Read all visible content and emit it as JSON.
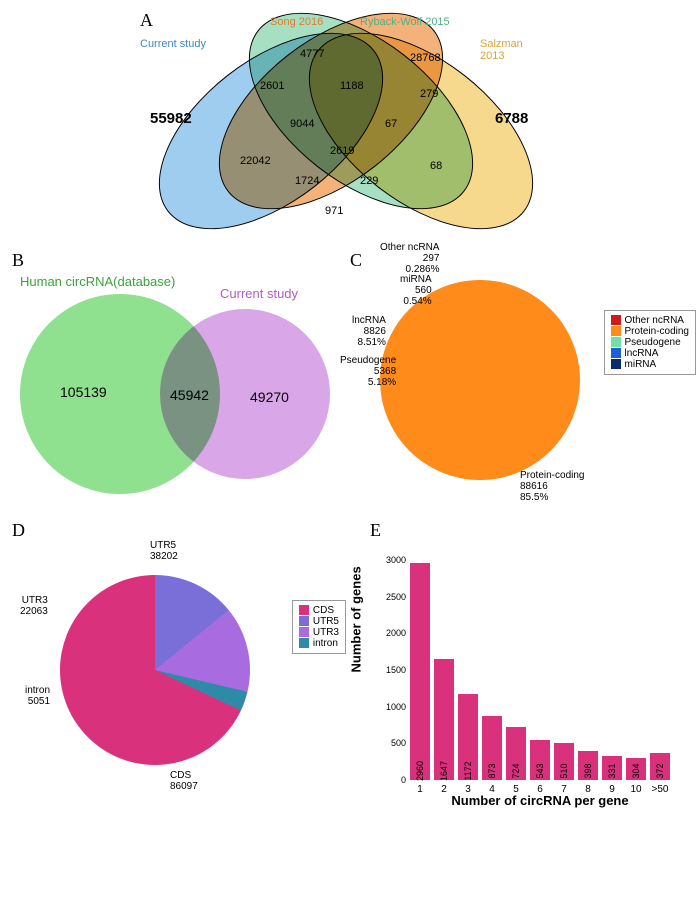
{
  "panelA": {
    "label": "A",
    "sets": [
      {
        "name": "Current study",
        "color": "#9ecdf0",
        "title_color": "#3d87c7"
      },
      {
        "name": "Song 2016",
        "color": "#f3b27a",
        "title_color": "#e07b2e"
      },
      {
        "name": "Ryback-Wolf 2015",
        "color": "#a6dfc1",
        "title_color": "#4fb082"
      },
      {
        "name": "Salzman 2013",
        "color": "#f6d98d",
        "title_color": "#d9a436"
      }
    ],
    "values": {
      "only_current": "55982",
      "only_song": "4777",
      "only_ryback": "28768",
      "only_salzman": "6788",
      "cs": "2601",
      "cr": "22042",
      "csal": "971",
      "sr": "1188",
      "ssal": "68",
      "rsal": "279",
      "csr": "9044",
      "cssal": "229",
      "crsal": "1724",
      "srsal": "67",
      "all4": "2619"
    }
  },
  "panelB": {
    "label": "B",
    "left": {
      "name": "Human circRNA(database)",
      "color": "#8fe08f",
      "title_color": "#3aa33a",
      "value": "105139"
    },
    "right": {
      "name": "Current study",
      "color": "#d9a6e8",
      "title_color": "#b05cc4",
      "value": "49270"
    },
    "overlap": "45942"
  },
  "panelC": {
    "label": "C",
    "slices": [
      {
        "key": "Protein-coding",
        "value": 88616,
        "pct": "85.5%",
        "color": "#ff8c1a"
      },
      {
        "key": "lncRNA",
        "value": 8826,
        "pct": "8.51%",
        "color": "#1f5fd6"
      },
      {
        "key": "Pseudogene",
        "value": 5368,
        "pct": "5.18%",
        "color": "#6fe0a8"
      },
      {
        "key": "miRNA",
        "value": 560,
        "pct": "0.54%",
        "color": "#0a2a6b"
      },
      {
        "key": "Other ncRNA",
        "value": 297,
        "pct": "0.286%",
        "color": "#d11b1b"
      }
    ],
    "legend_order": [
      "Other ncRNA",
      "Protein-coding",
      "Pseudogene",
      "lncRNA",
      "miRNA"
    ]
  },
  "panelD": {
    "label": "D",
    "slices": [
      {
        "key": "CDS",
        "value": 86097,
        "color": "#d9317b"
      },
      {
        "key": "UTR5",
        "value": 38202,
        "color": "#7a6ed9"
      },
      {
        "key": "UTR3",
        "value": 22063,
        "color": "#a96be0"
      },
      {
        "key": "intron",
        "value": 5051,
        "color": "#2f8aa8"
      }
    ],
    "legend_order": [
      "CDS",
      "UTR5",
      "UTR3",
      "intron"
    ]
  },
  "panelE": {
    "label": "E",
    "xlabel": "Number of circRNA per gene",
    "ylabel": "Number of genes",
    "bar_color": "#d9317b",
    "ymax": 3000,
    "ytick": 500,
    "bars": [
      {
        "cat": "1",
        "val": 2960
      },
      {
        "cat": "2",
        "val": 1647
      },
      {
        "cat": "3",
        "val": 1172
      },
      {
        "cat": "4",
        "val": 873
      },
      {
        "cat": "5",
        "val": 724
      },
      {
        "cat": "6",
        "val": 543
      },
      {
        "cat": "7",
        "val": 510
      },
      {
        "cat": "8",
        "val": 398
      },
      {
        "cat": "9",
        "val": 331
      },
      {
        "cat": "10",
        "val": 304
      },
      {
        "cat": ">50",
        "val": 372
      }
    ]
  }
}
